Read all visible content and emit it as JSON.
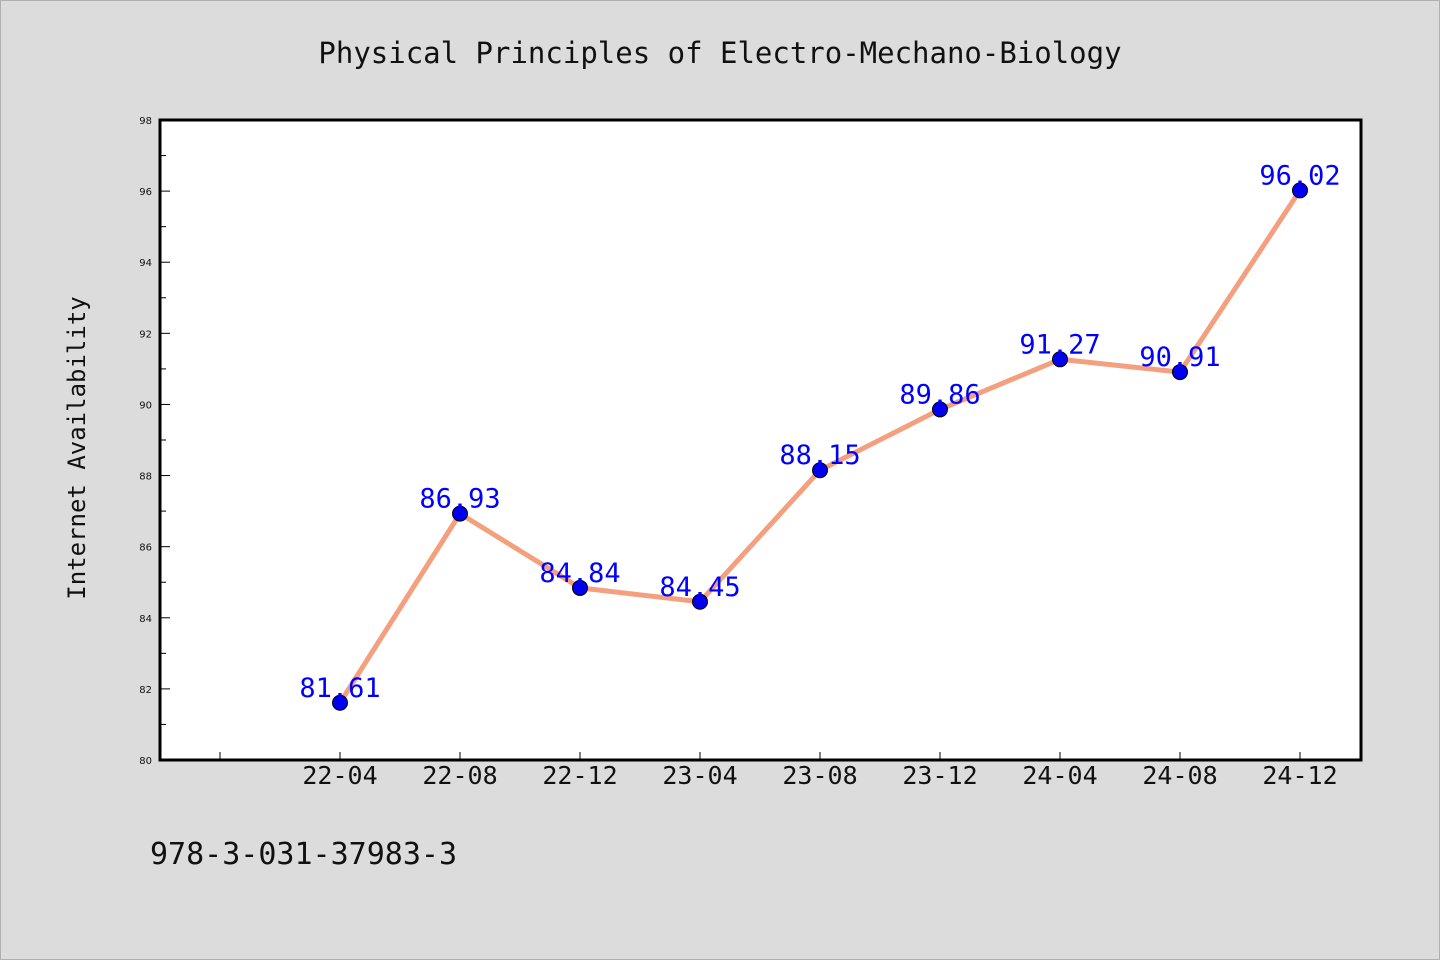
{
  "chart_data": {
    "type": "line",
    "title": "Physical Principles of Electro-Mechano-Biology",
    "xlabel": "",
    "ylabel": "Internet Availability",
    "categories": [
      "22-04",
      "22-08",
      "22-12",
      "23-04",
      "23-08",
      "23-12",
      "24-04",
      "24-08",
      "24-12"
    ],
    "values": [
      81.61,
      86.93,
      84.84,
      84.45,
      88.15,
      89.86,
      91.27,
      90.91,
      96.02
    ],
    "data_labels": [
      "81.61",
      "86.93",
      "84.84",
      "84.45",
      "88.15",
      "89.86",
      "91.27",
      "90.91",
      "96.02"
    ],
    "ylim": [
      80,
      98
    ],
    "yticks": [
      "80",
      "82",
      "84",
      "86",
      "88",
      "90",
      "92",
      "94",
      "96",
      "98"
    ],
    "grid": false,
    "legend": "none",
    "colors": {
      "line": "#f4a07e",
      "marker": "#0000ee",
      "label": "#0000ff",
      "plot_bg": "#ffffff",
      "page_bg": "#dcdcdc"
    }
  },
  "footer": {
    "isbn": "978-3-031-37983-3"
  }
}
